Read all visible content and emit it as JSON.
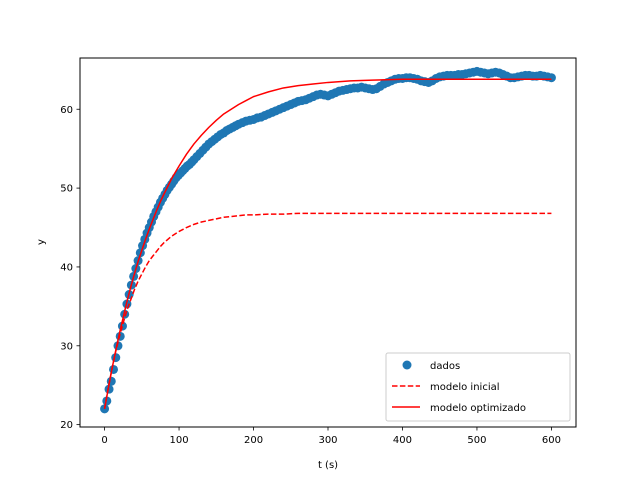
{
  "chart_data": {
    "type": "line",
    "xlabel": "t (s)",
    "ylabel": "y",
    "xlim": [
      -33,
      633
    ],
    "ylim": [
      19.7,
      66.5
    ],
    "xticks": [
      0,
      100,
      200,
      300,
      400,
      500,
      600
    ],
    "yticks": [
      20,
      30,
      40,
      50,
      60
    ],
    "grid": false,
    "legend_position": "lower-right",
    "colors": {
      "dados": "#1f77b4",
      "modelo": "#ff0000"
    },
    "series": [
      {
        "name": "dados",
        "style": "markers",
        "x": [
          0,
          3,
          6,
          9,
          12,
          15,
          18,
          21,
          24,
          27,
          30,
          33,
          36,
          39,
          42,
          45,
          48,
          51,
          54,
          57,
          60,
          63,
          66,
          69,
          72,
          75,
          78,
          81,
          84,
          87,
          90,
          93,
          96,
          99,
          102,
          105,
          108,
          111,
          114,
          117,
          120,
          124,
          128,
          132,
          136,
          140,
          144,
          148,
          152,
          156,
          160,
          164,
          168,
          172,
          176,
          180,
          185,
          190,
          195,
          200,
          205,
          210,
          215,
          220,
          225,
          230,
          235,
          240,
          245,
          250,
          255,
          260,
          265,
          270,
          275,
          280,
          285,
          290,
          295,
          300,
          305,
          310,
          315,
          320,
          325,
          330,
          335,
          340,
          345,
          350,
          355,
          360,
          365,
          370,
          375,
          380,
          385,
          390,
          395,
          400,
          405,
          410,
          415,
          420,
          425,
          430,
          435,
          440,
          445,
          450,
          455,
          460,
          465,
          470,
          475,
          480,
          485,
          490,
          495,
          500,
          505,
          510,
          515,
          520,
          525,
          530,
          535,
          540,
          545,
          550,
          555,
          560,
          565,
          570,
          575,
          580,
          585,
          590,
          595,
          600
        ],
        "y": [
          22,
          23,
          24.5,
          25.5,
          27,
          28.5,
          30,
          31.2,
          32.5,
          34,
          35.3,
          36.5,
          37.7,
          38.8,
          39.8,
          40.8,
          41.8,
          42.7,
          43.5,
          44.3,
          45,
          45.7,
          46.4,
          47,
          47.6,
          48.2,
          48.7,
          49.2,
          49.7,
          50.1,
          50.5,
          50.9,
          51.3,
          51.6,
          51.9,
          52.2,
          52.5,
          52.8,
          53,
          53.3,
          53.6,
          54,
          54.4,
          54.8,
          55.2,
          55.6,
          55.9,
          56.2,
          56.5,
          56.8,
          57,
          57.3,
          57.5,
          57.7,
          57.9,
          58.1,
          58.3,
          58.5,
          58.6,
          58.7,
          58.9,
          59,
          59.2,
          59.4,
          59.6,
          59.8,
          60,
          60.2,
          60.4,
          60.6,
          60.8,
          61,
          61.1,
          61.2,
          61.4,
          61.6,
          61.8,
          61.9,
          61.8,
          61.7,
          61.9,
          62.1,
          62.3,
          62.4,
          62.5,
          62.6,
          62.7,
          62.7,
          62.8,
          62.7,
          62.6,
          62.5,
          62.6,
          62.9,
          63.2,
          63.4,
          63.6,
          63.8,
          63.9,
          63.9,
          64,
          64,
          63.9,
          63.8,
          63.6,
          63.5,
          63.4,
          63.6,
          63.9,
          64.1,
          64.2,
          64.3,
          64.3,
          64.3,
          64.4,
          64.4,
          64.5,
          64.6,
          64.7,
          64.8,
          64.7,
          64.6,
          64.5,
          64.6,
          64.7,
          64.6,
          64.4,
          64.2,
          64,
          64,
          64.1,
          64.2,
          64.3,
          64.3,
          64.2,
          64.2,
          64.3,
          64.2,
          64.1,
          64
        ]
      },
      {
        "name": "modelo inicial",
        "style": "dashed",
        "x": [
          0,
          5,
          10,
          15,
          20,
          25,
          30,
          35,
          40,
          45,
          50,
          55,
          60,
          65,
          70,
          75,
          80,
          90,
          100,
          110,
          120,
          130,
          140,
          150,
          160,
          170,
          180,
          190,
          200,
          220,
          240,
          260,
          280,
          300,
          330,
          360,
          400,
          450,
          500,
          550,
          600
        ],
        "y": [
          22,
          24.7,
          27.1,
          29.3,
          31.2,
          32.9,
          34.5,
          35.8,
          37.1,
          38.2,
          39.1,
          40,
          40.8,
          41.4,
          42,
          42.6,
          43.1,
          43.9,
          44.5,
          45,
          45.4,
          45.7,
          45.9,
          46.1,
          46.3,
          46.4,
          46.5,
          46.6,
          46.6,
          46.7,
          46.7,
          46.8,
          46.8,
          46.8,
          46.8,
          46.8,
          46.8,
          46.8,
          46.8,
          46.8,
          46.8
        ]
      },
      {
        "name": "modelo optimizado",
        "style": "solid",
        "x": [
          0,
          5,
          10,
          15,
          20,
          25,
          30,
          35,
          40,
          45,
          50,
          55,
          60,
          65,
          70,
          75,
          80,
          90,
          100,
          110,
          120,
          130,
          140,
          150,
          160,
          170,
          180,
          190,
          200,
          220,
          240,
          260,
          280,
          300,
          330,
          360,
          400,
          450,
          500,
          550,
          600
        ],
        "y": [
          22,
          24.6,
          27.1,
          29.4,
          31.6,
          33.6,
          35.6,
          37.4,
          39.1,
          40.7,
          42.1,
          43.5,
          44.8,
          46,
          47.2,
          48.3,
          49.3,
          51.2,
          52.8,
          54.3,
          55.6,
          56.7,
          57.7,
          58.6,
          59.4,
          60,
          60.6,
          61.1,
          61.6,
          62.2,
          62.7,
          63,
          63.2,
          63.4,
          63.6,
          63.7,
          63.8,
          63.8,
          63.8,
          63.8,
          63.8
        ]
      }
    ]
  }
}
